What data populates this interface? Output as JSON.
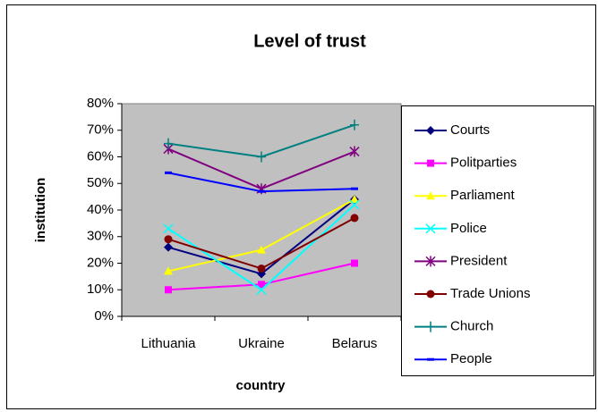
{
  "chart_data": {
    "type": "line",
    "title": "Level of trust",
    "x_label": "country",
    "y_label": "institution",
    "categories": [
      "Lithuania",
      "Ukraine",
      "Belarus"
    ],
    "ylim": [
      0,
      80
    ],
    "yticks": [
      {
        "value": 0,
        "label": "0%"
      },
      {
        "value": 10,
        "label": "10%"
      },
      {
        "value": 20,
        "label": "20%"
      },
      {
        "value": 30,
        "label": "30%"
      },
      {
        "value": 40,
        "label": "40%"
      },
      {
        "value": 50,
        "label": "50%"
      },
      {
        "value": 60,
        "label": "60%"
      },
      {
        "value": 70,
        "label": "70%"
      },
      {
        "value": 80,
        "label": "80%"
      }
    ],
    "legend": "right",
    "series": [
      {
        "name": "Courts",
        "color": "#000080",
        "marker": "diamond",
        "values": [
          26,
          16,
          44
        ]
      },
      {
        "name": "Politparties",
        "color": "#ff00ff",
        "marker": "square",
        "values": [
          10,
          12,
          20
        ]
      },
      {
        "name": "Parliament",
        "color": "#ffff00",
        "marker": "triangle",
        "values": [
          17,
          25,
          44
        ]
      },
      {
        "name": "Police",
        "color": "#00ffff",
        "marker": "x",
        "values": [
          33,
          10,
          42
        ]
      },
      {
        "name": "President",
        "color": "#800080",
        "marker": "star",
        "values": [
          63,
          48,
          62
        ]
      },
      {
        "name": "Trade Unions",
        "color": "#800000",
        "marker": "circle",
        "values": [
          29,
          18,
          37
        ]
      },
      {
        "name": "Church",
        "color": "#008080",
        "marker": "plus",
        "values": [
          65,
          60,
          72
        ]
      },
      {
        "name": "People",
        "color": "#0000ff",
        "marker": "dash",
        "values": [
          54,
          47,
          48
        ]
      }
    ]
  }
}
